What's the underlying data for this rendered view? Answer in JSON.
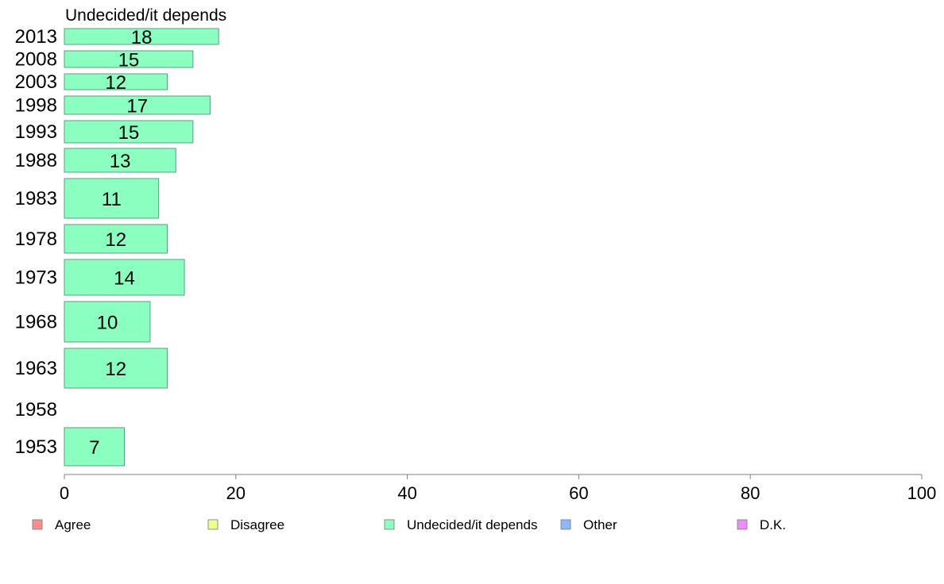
{
  "chart_data": {
    "type": "bar",
    "orientation": "horizontal",
    "panel_title": "Undecided/it depends",
    "categories": [
      "2013",
      "2008",
      "2003",
      "1998",
      "1993",
      "1988",
      "1983",
      "1978",
      "1973",
      "1968",
      "1963",
      "1958",
      "1953"
    ],
    "values": [
      18,
      15,
      12,
      17,
      15,
      13,
      11,
      12,
      14,
      10,
      12,
      null,
      7
    ],
    "data_labels": [
      "18",
      "15",
      "12",
      "17",
      "15",
      "13",
      "11",
      "12",
      "14",
      "10",
      "12",
      "",
      "7"
    ],
    "xlim": [
      0,
      100
    ],
    "x_ticks": [
      "0",
      "20",
      "40",
      "60",
      "80",
      "100"
    ],
    "bar_color": "#8bffbf",
    "bar_edge_color": "#5aa080",
    "grid": false,
    "legend": {
      "placement": "bottom",
      "entries": [
        {
          "label": "Agree",
          "color": "#ff8b8b"
        },
        {
          "label": "Disagree",
          "color": "#eeff8b"
        },
        {
          "label": "Undecided/it depends",
          "color": "#8bffbf"
        },
        {
          "label": "Other",
          "color": "#8bb8ff"
        },
        {
          "label": "D.K.",
          "color": "#ee8bff"
        }
      ]
    }
  }
}
